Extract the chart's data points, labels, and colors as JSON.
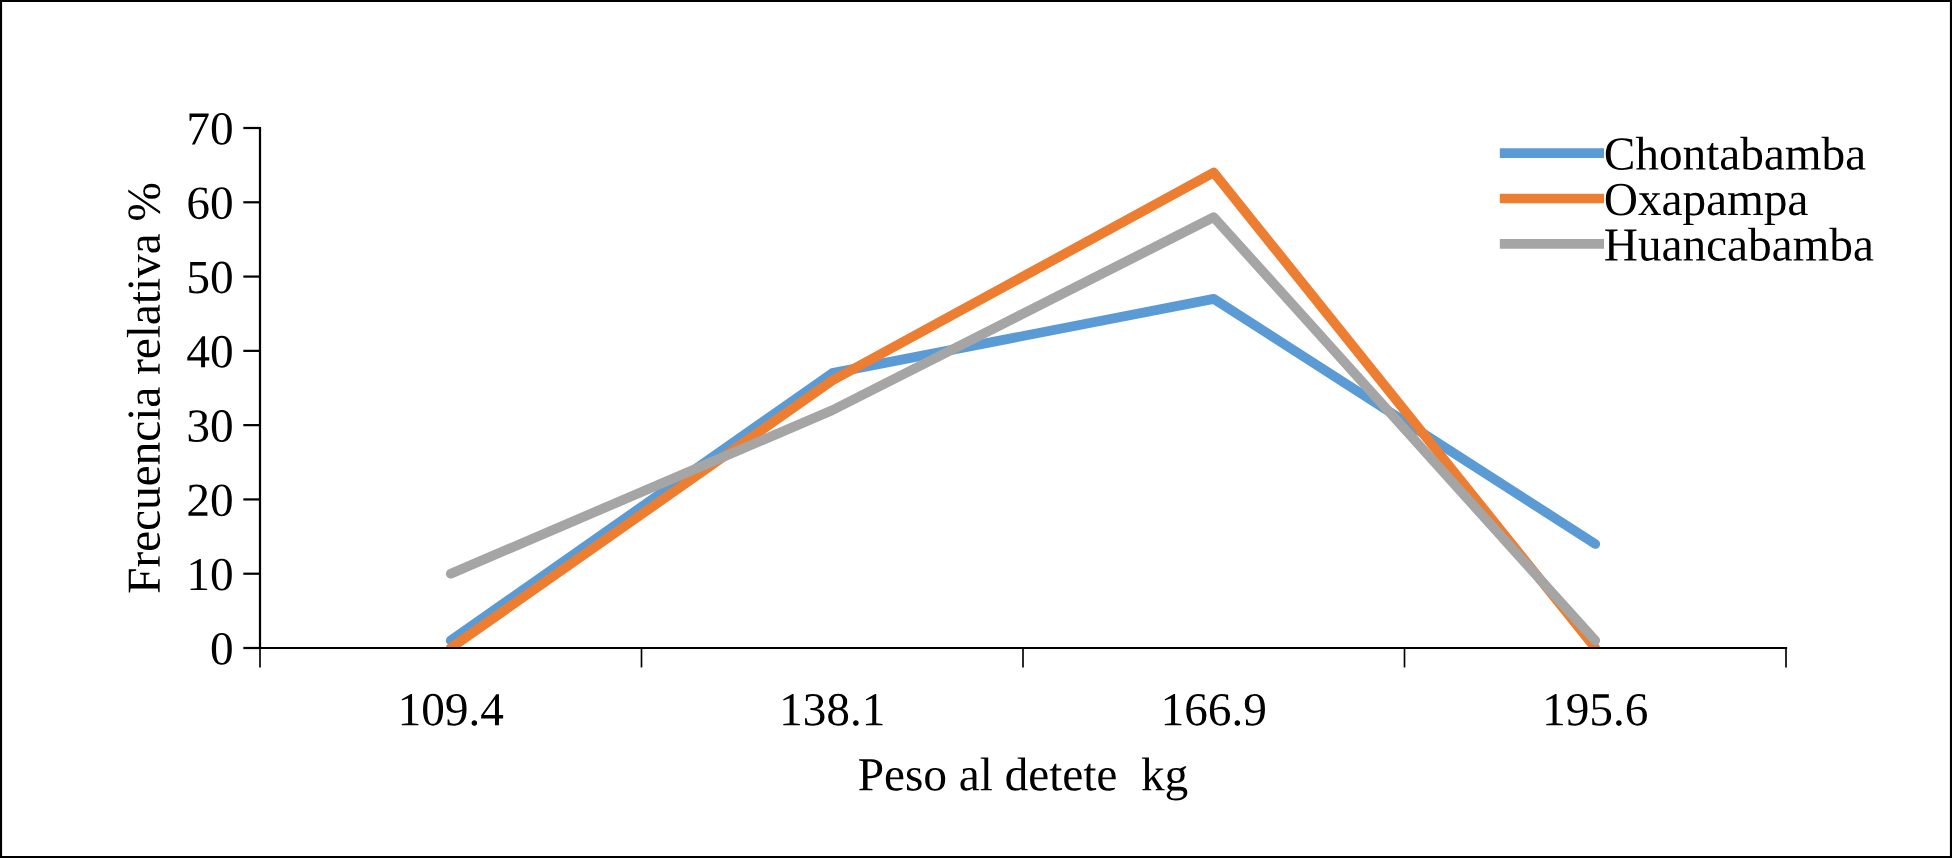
{
  "chart_data": {
    "type": "line",
    "xlabel": "Peso al detete  kg",
    "ylabel": "Frecuencia relativa %",
    "categories": [
      "109.4",
      "138.1",
      "166.9",
      "195.6"
    ],
    "series": [
      {
        "name": "Chontabamba",
        "color": "#5b9bd5",
        "values": [
          1,
          37,
          47,
          14
        ]
      },
      {
        "name": "Oxapampa",
        "color": "#ed7d31",
        "values": [
          0,
          36,
          64,
          0
        ]
      },
      {
        "name": "Huancabamba",
        "color": "#a5a5a5",
        "values": [
          10,
          32,
          58,
          1
        ]
      }
    ],
    "ylim": [
      0,
      70
    ],
    "yticks": [
      0,
      10,
      20,
      30,
      40,
      50,
      60,
      70
    ],
    "grid": false,
    "legend": "top right",
    "marker": "none",
    "line_style": "solid"
  }
}
